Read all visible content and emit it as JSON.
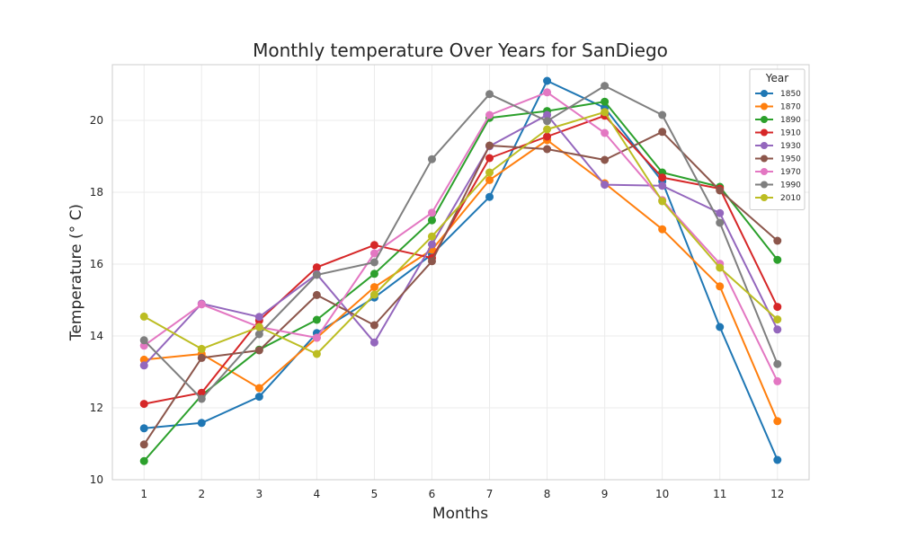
{
  "chart_data": {
    "type": "line",
    "title": "Monthly temperature Over Years for SanDiego",
    "xlabel": "Months",
    "ylabel": "Temperature (° C)",
    "x": [
      1,
      2,
      3,
      4,
      5,
      6,
      7,
      8,
      9,
      10,
      11,
      12
    ],
    "x_tick_labels": [
      "1",
      "2",
      "3",
      "4",
      "5",
      "6",
      "7",
      "8",
      "9",
      "10",
      "11",
      "12"
    ],
    "xlim": [
      0.45,
      12.55
    ],
    "ylim": [
      10,
      21.55
    ],
    "y_ticks": [
      10,
      12,
      14,
      16,
      18,
      20
    ],
    "y_tick_labels": [
      "10",
      "12",
      "14",
      "16",
      "18",
      "20"
    ],
    "grid": true,
    "legend": {
      "title": "Year",
      "placement": "top-right"
    },
    "series": [
      {
        "name": "1850",
        "color": "#1f77b4",
        "values": [
          11.43,
          11.58,
          12.31,
          14.08,
          15.07,
          16.27,
          17.87,
          21.1,
          20.35,
          18.3,
          14.25,
          10.55
        ]
      },
      {
        "name": "1870",
        "color": "#ff7f0e",
        "values": [
          13.34,
          13.5,
          12.55,
          13.95,
          15.36,
          16.4,
          18.34,
          19.45,
          18.25,
          16.97,
          15.38,
          11.63
        ]
      },
      {
        "name": "1890",
        "color": "#2ca02c",
        "values": [
          10.52,
          12.35,
          13.62,
          14.45,
          15.73,
          17.22,
          20.07,
          20.26,
          20.52,
          18.55,
          18.15,
          16.12
        ]
      },
      {
        "name": "1910",
        "color": "#d62728",
        "values": [
          12.11,
          12.42,
          14.43,
          15.91,
          16.53,
          16.17,
          18.95,
          19.55,
          20.13,
          18.41,
          18.1,
          14.81
        ]
      },
      {
        "name": "1930",
        "color": "#9467bd",
        "values": [
          13.18,
          14.9,
          14.53,
          15.72,
          13.82,
          16.55,
          19.28,
          20.15,
          18.21,
          18.18,
          17.42,
          14.18
        ]
      },
      {
        "name": "1950",
        "color": "#8c564b",
        "values": [
          10.98,
          13.39,
          13.6,
          15.14,
          14.3,
          16.08,
          19.3,
          19.2,
          18.9,
          19.68,
          18.05,
          16.65
        ]
      },
      {
        "name": "1970",
        "color": "#e377c2",
        "values": [
          13.73,
          14.88,
          14.25,
          13.95,
          16.3,
          17.43,
          20.15,
          20.78,
          19.65,
          17.78,
          16.01,
          12.74
        ]
      },
      {
        "name": "1990",
        "color": "#7f7f7f",
        "values": [
          13.88,
          12.25,
          14.05,
          15.7,
          16.05,
          18.92,
          20.73,
          19.98,
          20.96,
          20.15,
          17.15,
          13.22
        ]
      },
      {
        "name": "2010",
        "color": "#bcbd22",
        "values": [
          14.54,
          13.64,
          14.25,
          13.5,
          15.15,
          16.77,
          18.55,
          19.75,
          20.23,
          17.75,
          15.9,
          14.46
        ]
      }
    ]
  }
}
